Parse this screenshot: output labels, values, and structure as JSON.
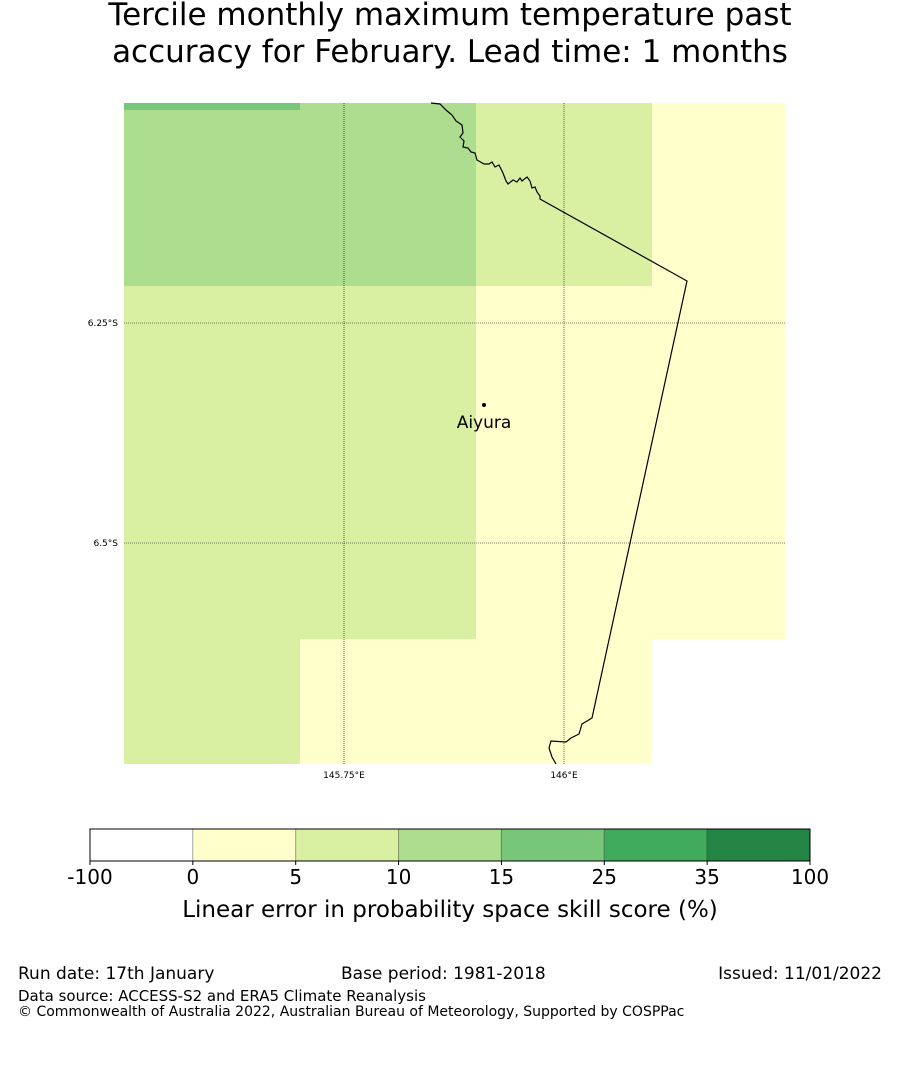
{
  "title_line1": "Tercile monthly maximum temperature past",
  "title_line2": "accuracy for February. Lead time: 1 months",
  "map": {
    "lat_labels": [
      "6.25°S",
      "6.5°S"
    ],
    "lon_labels": [
      "145.75°E",
      "146°E"
    ],
    "place": {
      "name": "Aiyura"
    }
  },
  "legend": {
    "title": "Linear error in probability space skill score (%)",
    "ticks": [
      "-100",
      "0",
      "5",
      "10",
      "15",
      "25",
      "35",
      "100"
    ],
    "colors": [
      "#ffffff",
      "#ffffcc",
      "#d9f0a3",
      "#addd8e",
      "#78c679",
      "#41ab5d",
      "#238443"
    ]
  },
  "footer": {
    "run_date": "Run date: 17th January",
    "base_period": "Base period: 1981-2018",
    "issued": "Issued: 11/01/2022",
    "data_source": "Data source: ACCESS-S2 and ERA5 Climate Reanalysis",
    "copyright": "© Commonwealth of Australia 2022, Australian Bureau of Meteorology, Supported by COSPPac"
  }
}
